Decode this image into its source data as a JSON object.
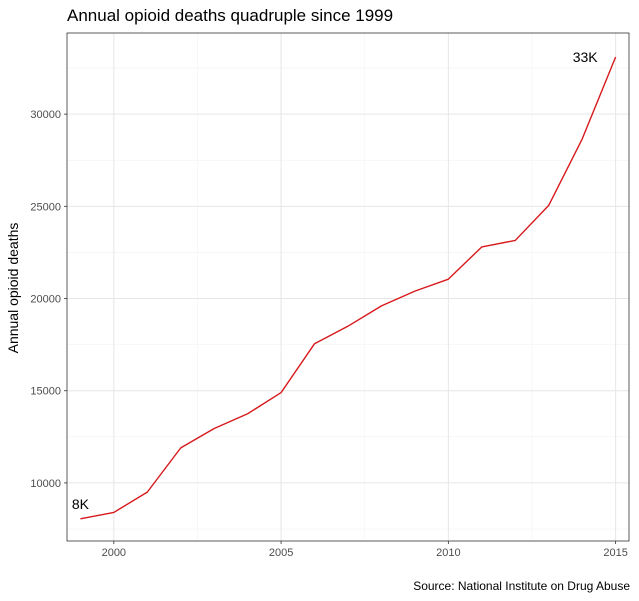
{
  "chart_data": {
    "type": "line",
    "title": "Annual opioid deaths quadruple since 1999",
    "xlabel": "",
    "ylabel": "Annual opioid deaths",
    "caption": "Source: National Institute on Drug Abuse",
    "x": [
      1999,
      2000,
      2001,
      2002,
      2003,
      2004,
      2005,
      2006,
      2007,
      2008,
      2009,
      2010,
      2011,
      2012,
      2013,
      2014,
      2015
    ],
    "series": [
      {
        "values": [
          8050,
          8400,
          9500,
          11900,
          12950,
          13750,
          14900,
          17550,
          18500,
          19600,
          20400,
          21050,
          22800,
          23150,
          25050,
          28650,
          33100
        ],
        "color": "#d7191c"
      }
    ],
    "annotations": [
      {
        "x": 1999,
        "y": 8050,
        "text": "8K",
        "placement": "above"
      },
      {
        "x": 2015,
        "y": 33100,
        "text": "33K",
        "placement": "left"
      }
    ],
    "xlim": [
      1998.6,
      2015.4
    ],
    "ylim": [
      6850,
      34400
    ],
    "xticks": [
      2000,
      2005,
      2010,
      2015
    ],
    "yticks": [
      10000,
      15000,
      20000,
      25000,
      30000
    ],
    "grid": true,
    "legend": "none"
  }
}
